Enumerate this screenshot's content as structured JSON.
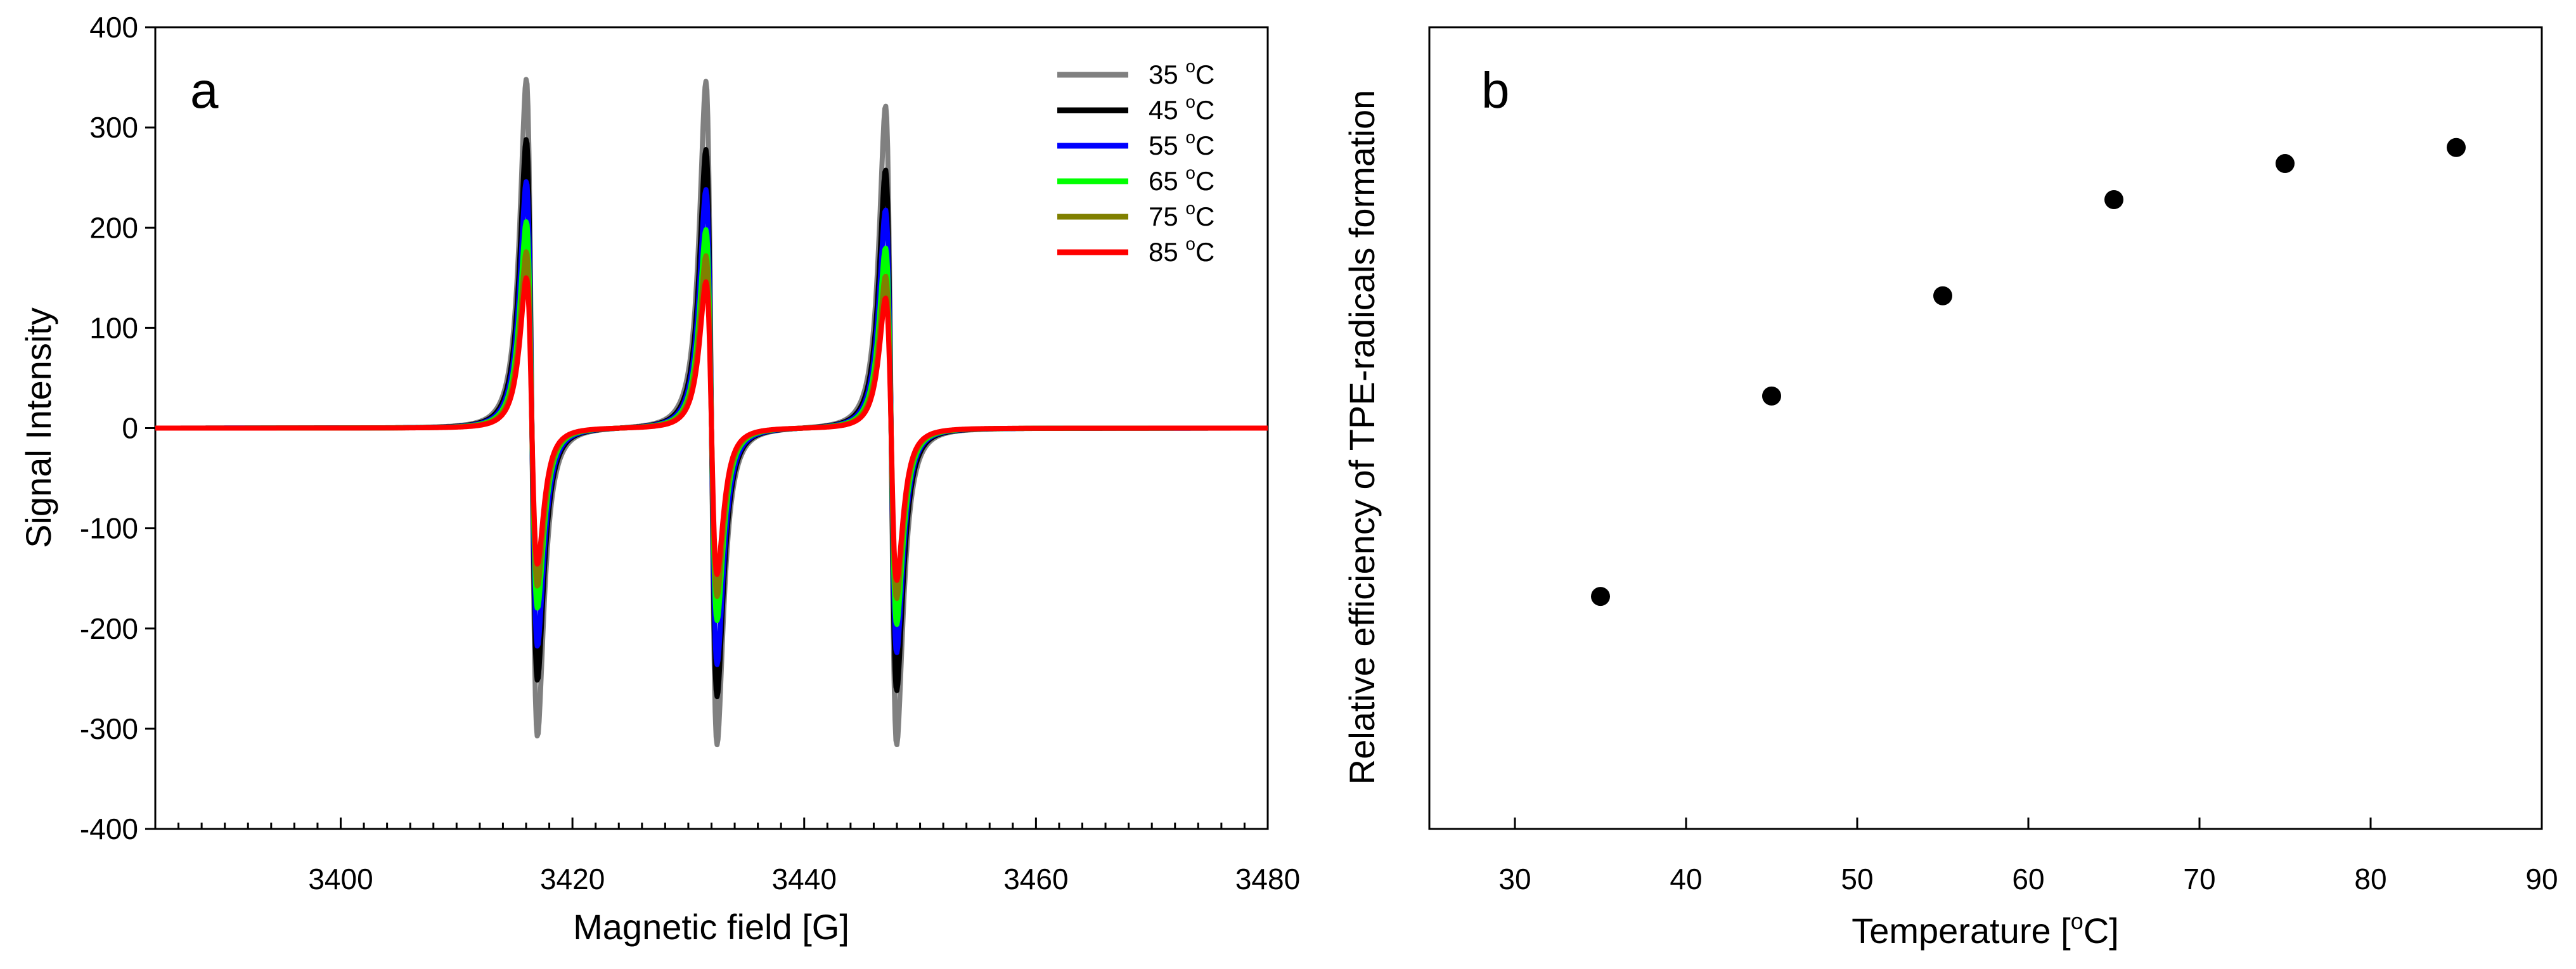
{
  "chart_data": [
    {
      "panel": "a",
      "type": "line",
      "title": "",
      "xlabel": "Magnetic field [G]",
      "ylabel": "Signal Intensity",
      "xlim": [
        3384,
        3480
      ],
      "ylim": [
        -400,
        400
      ],
      "x_ticks": [
        3400,
        3420,
        3440,
        3460,
        3480
      ],
      "y_ticks": [
        -400,
        -300,
        -200,
        -100,
        0,
        100,
        200,
        300,
        400
      ],
      "x_minor_step": 2,
      "grid": false,
      "legend_position": "top-right",
      "line_centers": [
        3416.5,
        3432.0,
        3447.5
      ],
      "series": [
        {
          "name": "35",
          "unit_superscript": "o",
          "unit": "C",
          "color": "#808080",
          "peaks": [
            348,
            346,
            322
          ],
          "troughs": [
            -308,
            -316,
            -316
          ]
        },
        {
          "name": "45",
          "unit_superscript": "o",
          "unit": "C",
          "color": "#000000",
          "peaks": [
            288,
            278,
            258
          ],
          "troughs": [
            -252,
            -268,
            -262
          ]
        },
        {
          "name": "55",
          "unit_superscript": "o",
          "unit": "C",
          "color": "#0000ff",
          "peaks": [
            246,
            238,
            218
          ],
          "troughs": [
            -218,
            -236,
            -224
          ]
        },
        {
          "name": "65",
          "unit_superscript": "o",
          "unit": "C",
          "color": "#00ff00",
          "peaks": [
            206,
            198,
            180
          ],
          "troughs": [
            -180,
            -192,
            -196
          ]
        },
        {
          "name": "75",
          "unit_superscript": "o",
          "unit": "C",
          "color": "#808000",
          "peaks": [
            176,
            172,
            152
          ],
          "troughs": [
            -158,
            -168,
            -170
          ]
        },
        {
          "name": "85",
          "unit_superscript": "o",
          "unit": "C",
          "color": "#ff0000",
          "peaks": [
            150,
            146,
            130
          ],
          "troughs": [
            -136,
            -146,
            -152
          ]
        }
      ]
    },
    {
      "panel": "b",
      "type": "scatter",
      "title": "",
      "xlabel_text": "Temperature [",
      "xlabel_sup": "o",
      "xlabel_tail": "C]",
      "ylabel": "Relative efficiency of TPE-radicals formation",
      "xlim": [
        25,
        90
      ],
      "ylim": [
        0,
        10
      ],
      "x_ticks": [
        30,
        40,
        50,
        60,
        70,
        80,
        90
      ],
      "grid": false,
      "series": [
        {
          "name": "relative efficiency",
          "color": "#000000",
          "x": [
            35,
            45,
            55,
            65,
            75,
            85
          ],
          "y": [
            2.9,
            5.4,
            6.65,
            7.85,
            8.3,
            8.5
          ]
        }
      ]
    }
  ]
}
